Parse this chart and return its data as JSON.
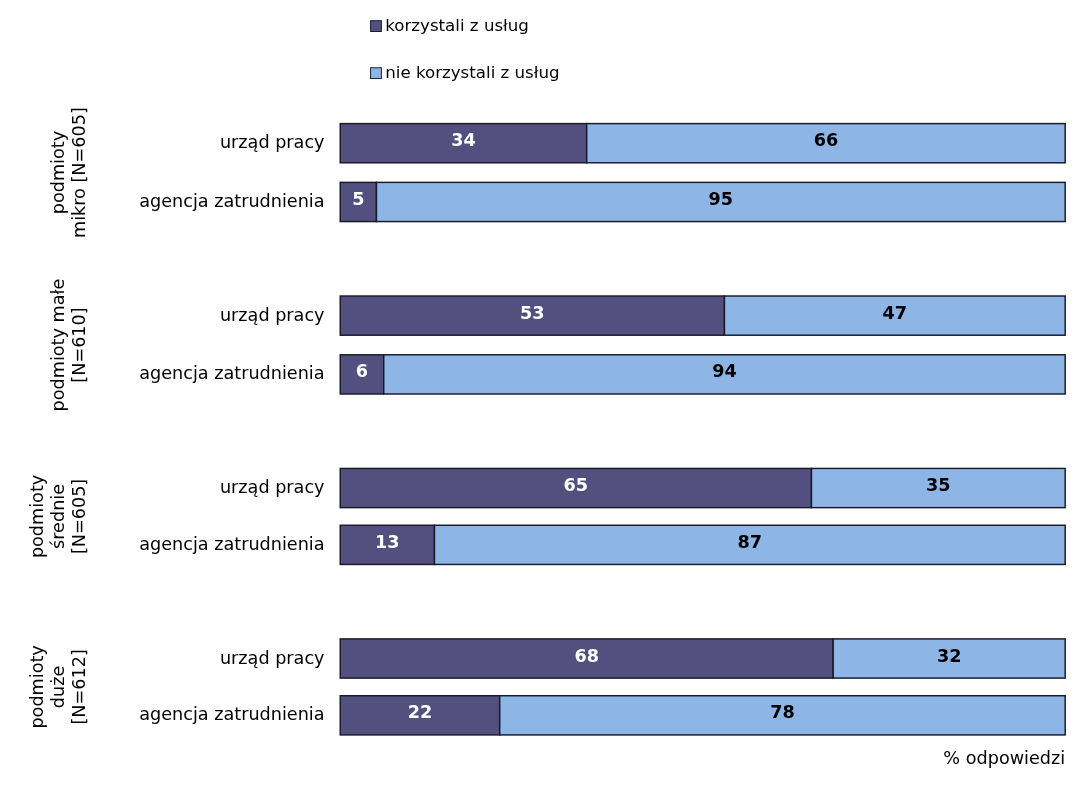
{
  "chart_data": {
    "type": "bar",
    "orientation": "horizontal",
    "stacked": true,
    "data_labels": true,
    "legend": "top",
    "xlabel": "% odpowiedzi",
    "xlim": [
      0,
      100
    ],
    "categories": [
      "urząd pracy",
      "agencja zatrudnienia",
      "urząd pracy",
      "agencja zatrudnienia",
      "urząd pracy",
      "agencja zatrudnienia",
      "urząd pracy",
      "agencja zatrudnienia"
    ],
    "series": [
      {
        "name": "korzystali z usług",
        "color": "#534f7e",
        "values": [
          34,
          5,
          53,
          6,
          65,
          13,
          68,
          22
        ]
      },
      {
        "name": "nie korzystali z usług",
        "color": "#8db6e6",
        "values": [
          66,
          95,
          47,
          94,
          35,
          87,
          32,
          78
        ]
      }
    ],
    "annotations": [
      "podmioty\nmikro [N=605]",
      "podmioty małe\n[N=610]",
      "podmioty\nśrednie\n[N=605]",
      "podmioty\nduże\n[N=612]"
    ]
  }
}
